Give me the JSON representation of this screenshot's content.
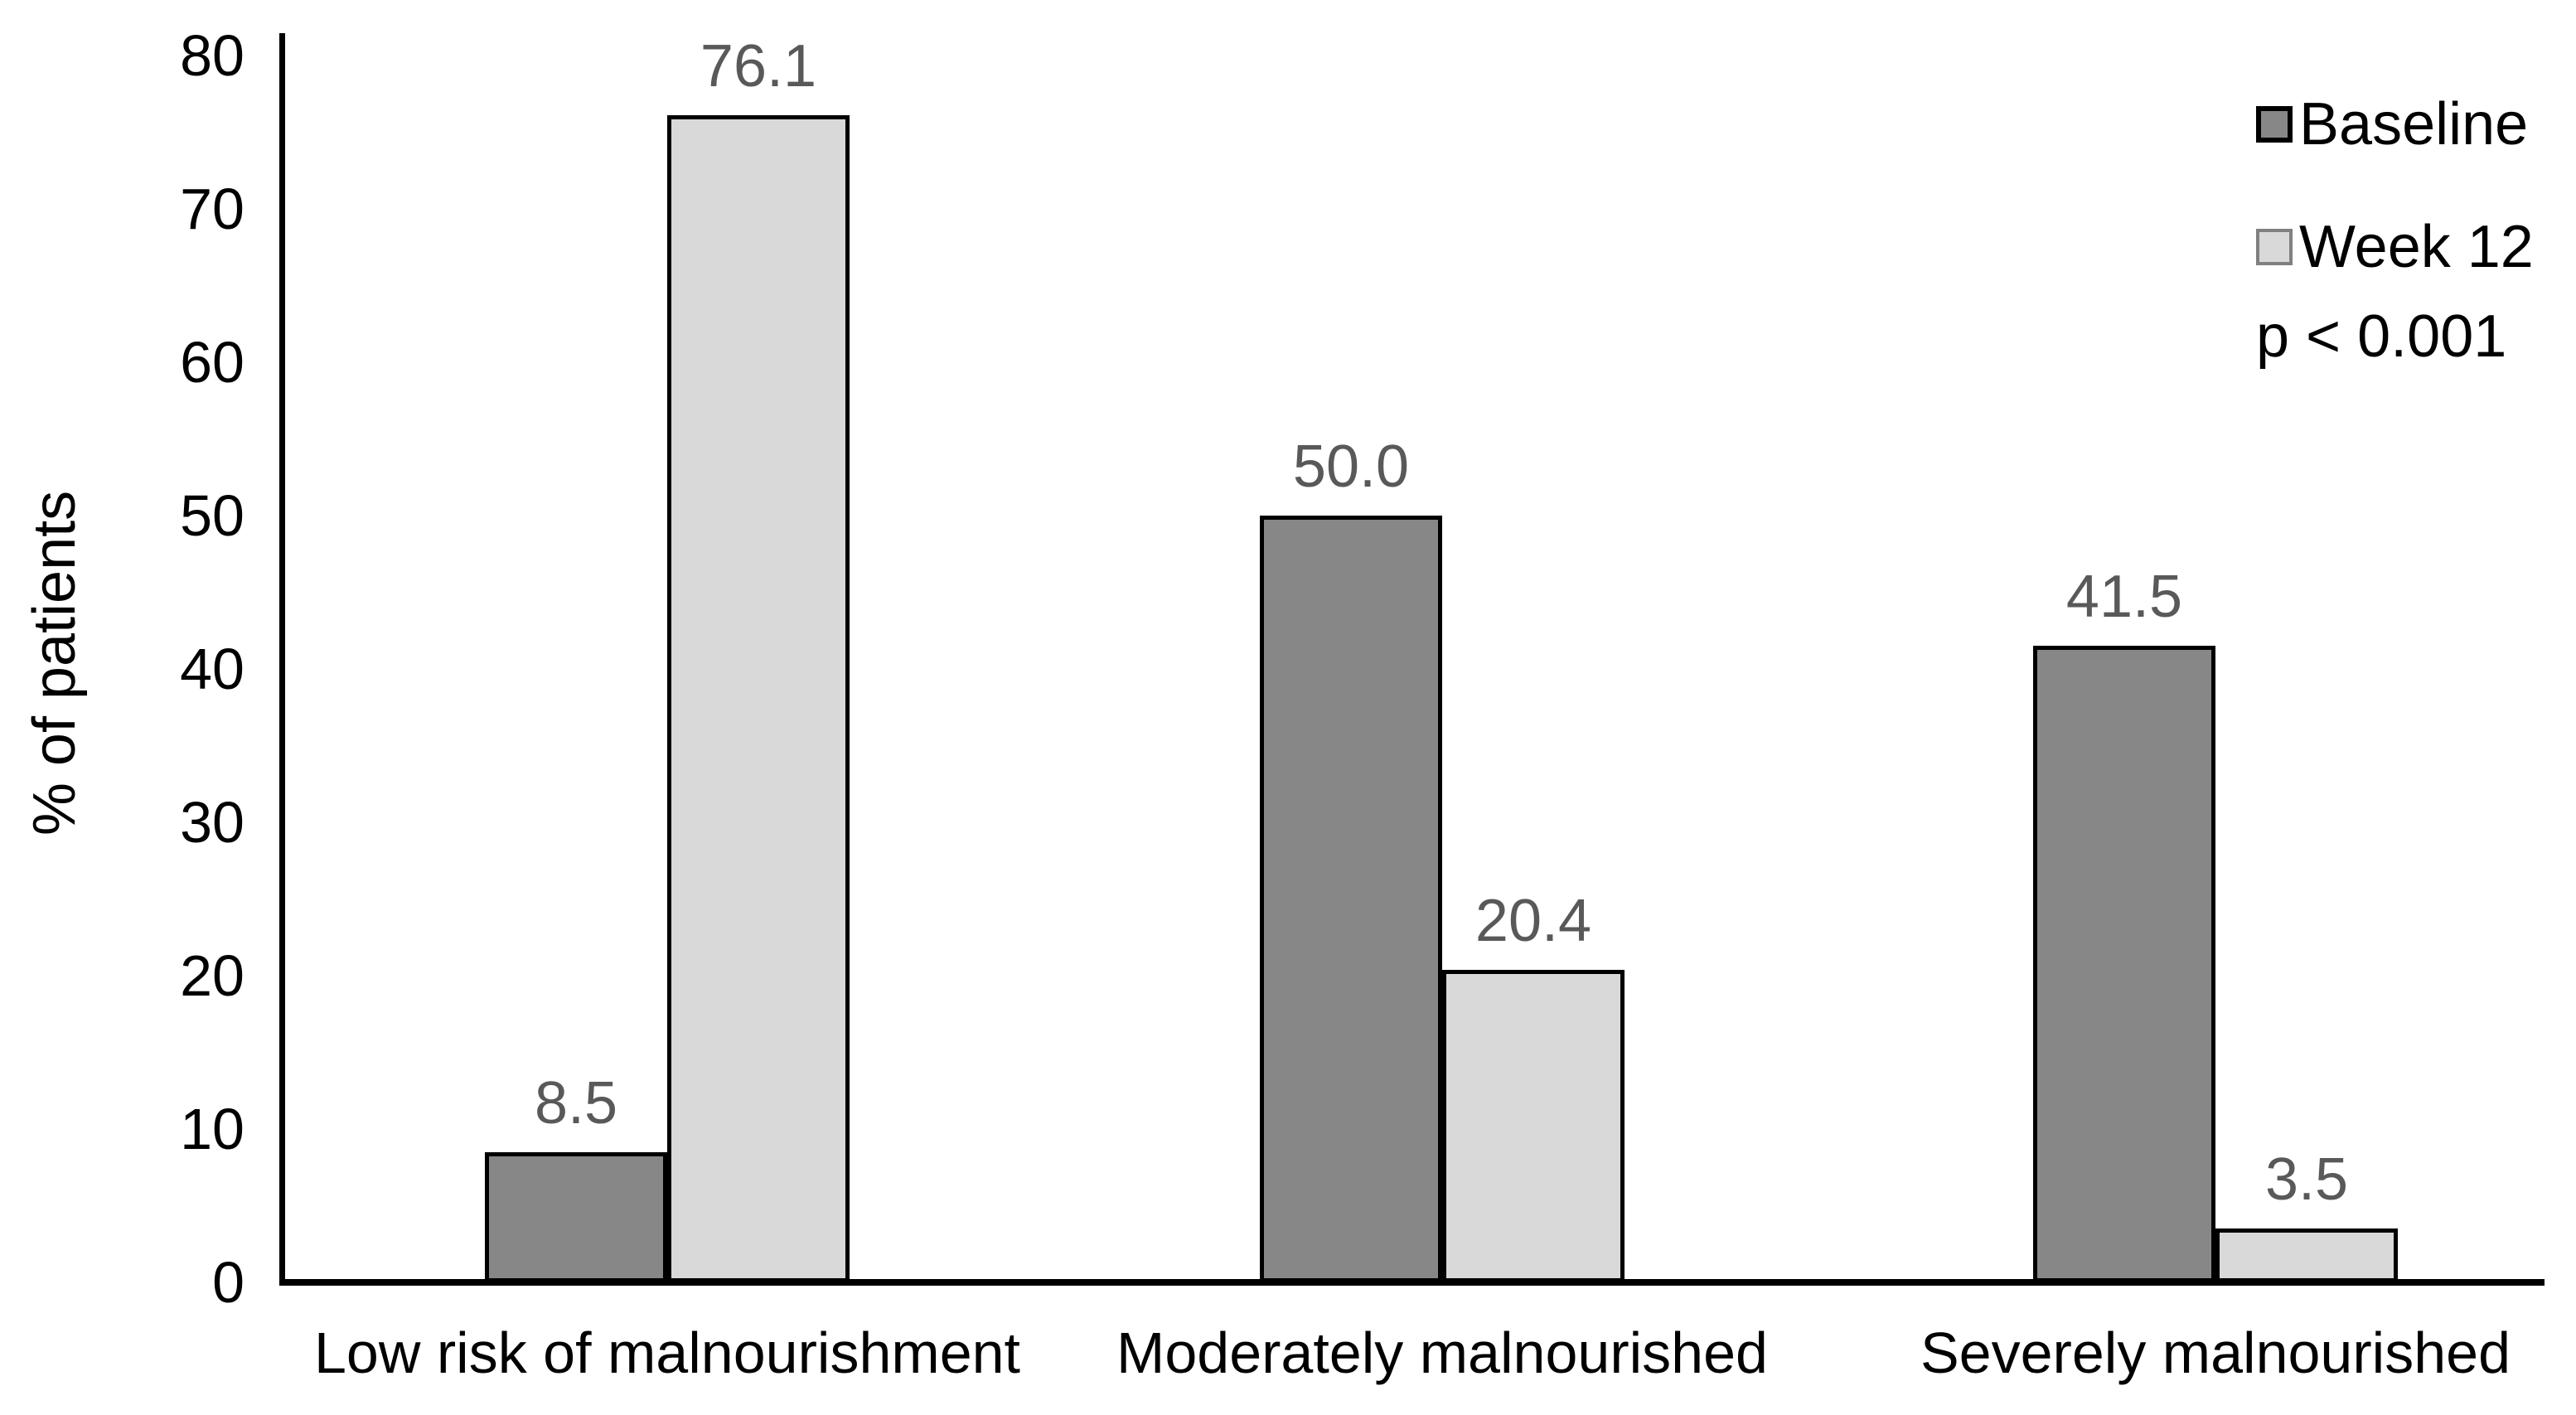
{
  "figure": {
    "background": "#ffffff",
    "axis_color": "#000000",
    "text_color": "#000000",
    "value_label_color": "#595959"
  },
  "chart_data": {
    "type": "bar",
    "ylabel": "% of patients",
    "ylim": [
      0,
      80
    ],
    "ytick_step": 10,
    "yticks": [
      0,
      10,
      20,
      30,
      40,
      50,
      60,
      70,
      80
    ],
    "grid": false,
    "legend_position": "top-right",
    "annotation": "p < 0.001",
    "categories": [
      "Low risk of malnourishment",
      "Moderately malnourished",
      "Severely malnourished"
    ],
    "series": [
      {
        "name": "Baseline",
        "color": "#878787",
        "border_color": "#000000",
        "legend_border_color": "#000000",
        "values": [
          8.5,
          50.0,
          41.5
        ],
        "labels": [
          "8.5",
          "50.0",
          "41.5"
        ]
      },
      {
        "name": "Week 12",
        "color": "#d9d9d9",
        "border_color": "#000000",
        "legend_border_color": "#808080",
        "values": [
          76.1,
          20.4,
          3.5
        ],
        "labels": [
          "76.1",
          "20.4",
          "3.5"
        ]
      }
    ]
  }
}
